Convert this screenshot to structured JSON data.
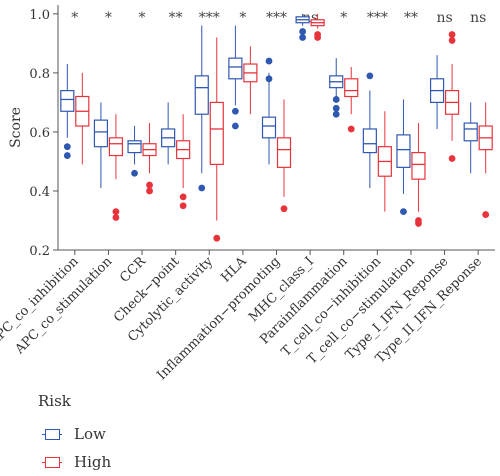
{
  "chart_data": {
    "type": "boxplot",
    "ylabel": "Score",
    "ylim": [
      0.2,
      1.03
    ],
    "yticks": [
      "0.2",
      "0.4",
      "0.6",
      "0.8",
      "1.0"
    ],
    "categories": [
      "APC_co_inhibition",
      "APC_co_stimulation",
      "CCR",
      "Check−point",
      "Cytolytic_activity",
      "HLA",
      "Inflammation−promoting",
      "MHC_class_I",
      "Parainflammation",
      "T_cell_co−inhibition",
      "T_cell_co−stimulation",
      "Type_I_IFN_Reponse",
      "Type_II_IFN_Reponse"
    ],
    "significance": [
      "*",
      "*",
      "*",
      "**",
      "***",
      "*",
      "***",
      "ns",
      "*",
      "***",
      "**",
      "ns",
      "ns"
    ],
    "series": [
      {
        "name": "Low",
        "color": "#2f58b0",
        "boxes": [
          {
            "min": 0.58,
            "q1": 0.67,
            "median": 0.71,
            "q3": 0.74,
            "max": 0.83,
            "outliers": [
              0.55,
              0.52
            ]
          },
          {
            "min": 0.41,
            "q1": 0.55,
            "median": 0.6,
            "q3": 0.64,
            "max": 0.7,
            "outliers": []
          },
          {
            "min": 0.49,
            "q1": 0.53,
            "median": 0.56,
            "q3": 0.57,
            "max": 0.62,
            "outliers": [
              0.46
            ]
          },
          {
            "min": 0.49,
            "q1": 0.55,
            "median": 0.58,
            "q3": 0.61,
            "max": 0.7,
            "outliers": []
          },
          {
            "min": 0.46,
            "q1": 0.66,
            "median": 0.75,
            "q3": 0.79,
            "max": 0.96,
            "outliers": [
              0.41
            ]
          },
          {
            "min": 0.69,
            "q1": 0.78,
            "median": 0.82,
            "q3": 0.85,
            "max": 0.96,
            "outliers": [
              0.67,
              0.62
            ]
          },
          {
            "min": 0.49,
            "q1": 0.58,
            "median": 0.62,
            "q3": 0.65,
            "max": 0.8,
            "outliers": [
              0.84,
              0.78
            ]
          },
          {
            "min": 0.96,
            "q1": 0.97,
            "median": 0.98,
            "q3": 0.99,
            "max": 1.0,
            "outliers": [
              0.94,
              0.92
            ]
          },
          {
            "min": 0.72,
            "q1": 0.75,
            "median": 0.77,
            "q3": 0.79,
            "max": 0.85,
            "outliers": [
              0.71,
              0.68,
              0.66
            ]
          },
          {
            "min": 0.41,
            "q1": 0.53,
            "median": 0.56,
            "q3": 0.61,
            "max": 0.74,
            "outliers": [
              0.79
            ]
          },
          {
            "min": 0.39,
            "q1": 0.48,
            "median": 0.54,
            "q3": 0.59,
            "max": 0.71,
            "outliers": [
              0.33
            ]
          },
          {
            "min": 0.61,
            "q1": 0.7,
            "median": 0.74,
            "q3": 0.78,
            "max": 0.86,
            "outliers": []
          },
          {
            "min": 0.46,
            "q1": 0.57,
            "median": 0.61,
            "q3": 0.63,
            "max": 0.7,
            "outliers": []
          }
        ]
      },
      {
        "name": "High",
        "color": "#e8333b",
        "boxes": [
          {
            "min": 0.49,
            "q1": 0.62,
            "median": 0.67,
            "q3": 0.72,
            "max": 0.8,
            "outliers": []
          },
          {
            "min": 0.44,
            "q1": 0.52,
            "median": 0.56,
            "q3": 0.58,
            "max": 0.66,
            "outliers": [
              0.33,
              0.31
            ]
          },
          {
            "min": 0.46,
            "q1": 0.52,
            "median": 0.54,
            "q3": 0.56,
            "max": 0.63,
            "outliers": [
              0.42,
              0.4
            ]
          },
          {
            "min": 0.41,
            "q1": 0.51,
            "median": 0.54,
            "q3": 0.57,
            "max": 0.66,
            "outliers": [
              0.38,
              0.35
            ]
          },
          {
            "min": 0.3,
            "q1": 0.49,
            "median": 0.61,
            "q3": 0.7,
            "max": 0.92,
            "outliers": [
              0.24
            ]
          },
          {
            "min": 0.66,
            "q1": 0.77,
            "median": 0.8,
            "q3": 0.83,
            "max": 0.89,
            "outliers": []
          },
          {
            "min": 0.38,
            "q1": 0.48,
            "median": 0.54,
            "q3": 0.58,
            "max": 0.71,
            "outliers": [
              0.34
            ]
          },
          {
            "min": 0.95,
            "q1": 0.96,
            "median": 0.97,
            "q3": 0.98,
            "max": 1.0,
            "outliers": [
              0.93,
              0.92
            ]
          },
          {
            "min": 0.66,
            "q1": 0.72,
            "median": 0.74,
            "q3": 0.78,
            "max": 0.82,
            "outliers": [
              0.61
            ]
          },
          {
            "min": 0.33,
            "q1": 0.45,
            "median": 0.5,
            "q3": 0.55,
            "max": 0.67,
            "outliers": []
          },
          {
            "min": 0.33,
            "q1": 0.44,
            "median": 0.49,
            "q3": 0.53,
            "max": 0.63,
            "outliers": [
              0.3,
              0.29
            ]
          },
          {
            "min": 0.57,
            "q1": 0.66,
            "median": 0.7,
            "q3": 0.74,
            "max": 0.83,
            "outliers": [
              0.93,
              0.91,
              0.51
            ]
          },
          {
            "min": 0.46,
            "q1": 0.54,
            "median": 0.58,
            "q3": 0.62,
            "max": 0.7,
            "outliers": [
              0.32
            ]
          }
        ]
      }
    ],
    "legend": {
      "title": "Risk",
      "position": "bottom-left",
      "items": [
        {
          "label": "Low",
          "color": "#2f58b0"
        },
        {
          "label": "High",
          "color": "#e8333b"
        }
      ]
    },
    "grid": false
  }
}
